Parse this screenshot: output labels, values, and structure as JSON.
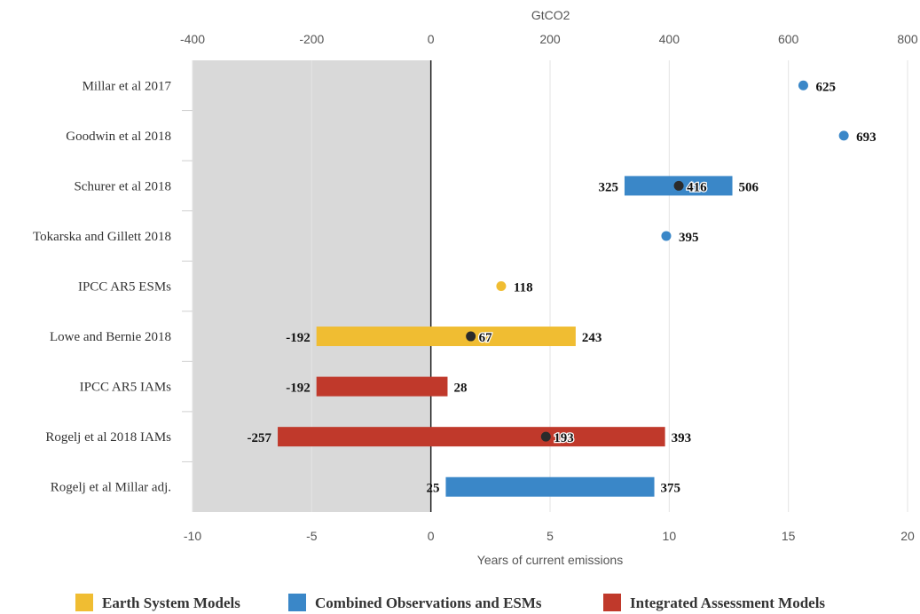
{
  "chart_data": {
    "type": "bar",
    "top_axis": {
      "title": "GtCO2",
      "ticks": [
        -400,
        -200,
        0,
        200,
        400,
        600,
        800
      ],
      "range": [
        -400,
        800
      ]
    },
    "bottom_axis": {
      "title": "Years of current emissions",
      "ticks": [
        -10,
        -5,
        0,
        5,
        10,
        15,
        20
      ],
      "range": [
        -10,
        20
      ]
    },
    "shaded_region": [
      -400,
      0
    ],
    "colors": {
      "esm": "#f0bd32",
      "combined": "#3a87c8",
      "iam": "#c0392b",
      "median": "#2b2b2b",
      "shade": "#d9d9d9"
    },
    "legend": [
      {
        "key": "esm",
        "label": "Earth System Models"
      },
      {
        "key": "combined",
        "label": "Combined Observations and ESMs"
      },
      {
        "key": "iam",
        "label": "Integrated Assessment Models"
      }
    ],
    "rows": [
      {
        "label": "Millar et al 2017",
        "category": "combined",
        "point": 625
      },
      {
        "label": "Goodwin et al 2018",
        "category": "combined",
        "point": 693
      },
      {
        "label": "Schurer et al 2018",
        "category": "combined",
        "low": 325,
        "median": 416,
        "high": 506
      },
      {
        "label": "Tokarska and Gillett 2018",
        "category": "combined",
        "point": 395
      },
      {
        "label": "IPCC AR5 ESMs",
        "category": "esm",
        "point": 118
      },
      {
        "label": "Lowe and Bernie 2018",
        "category": "esm",
        "low": -192,
        "median": 67,
        "high": 243
      },
      {
        "label": "IPCC AR5 IAMs",
        "category": "iam",
        "low": -192,
        "high": 28
      },
      {
        "label": "Rogelj et al 2018 IAMs",
        "category": "iam",
        "low": -257,
        "median": 193,
        "high": 393
      },
      {
        "label": "Rogelj et al Millar adj.",
        "category": "combined",
        "low": 25,
        "high": 375
      }
    ]
  }
}
